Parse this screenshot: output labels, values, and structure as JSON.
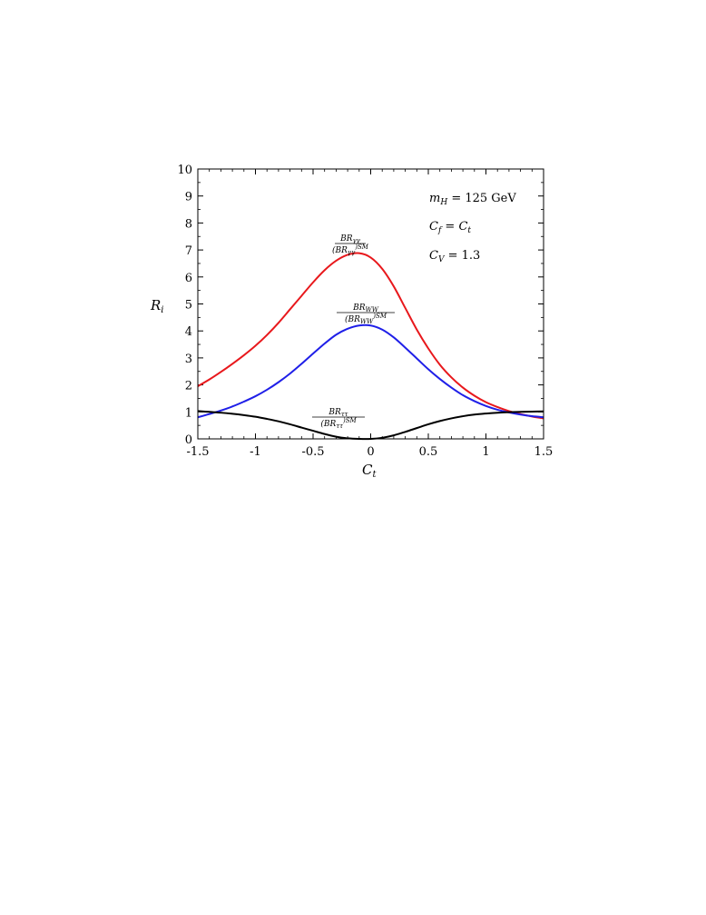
{
  "chart_data": {
    "type": "line",
    "xlabel": "C",
    "xlabel_sub": "t",
    "ylabel": "R",
    "ylabel_sub": "i",
    "xlim": [
      -1.5,
      1.5
    ],
    "ylim": [
      0,
      10
    ],
    "x_ticks": [
      "-1.5",
      "-1",
      "-0.5",
      "0",
      "0.5",
      "1",
      "1.5"
    ],
    "x_tick_values": [
      -1.5,
      -1,
      -0.5,
      0,
      0.5,
      1,
      1.5
    ],
    "y_ticks": [
      "0",
      "1",
      "2",
      "3",
      "4",
      "5",
      "6",
      "7",
      "8",
      "9",
      "10"
    ],
    "y_tick_values": [
      0,
      1,
      2,
      3,
      4,
      5,
      6,
      7,
      8,
      9,
      10
    ],
    "grid": false,
    "annotations": {
      "line1": {
        "var": "m",
        "sub": "H",
        "rest": " = 125 GeV"
      },
      "line2": {
        "var": "C",
        "sub": "f",
        "mid": " = ",
        "var2": "C",
        "sub2": "t"
      },
      "line3": {
        "var": "C",
        "sub": "V",
        "rest": " = 1.3"
      }
    },
    "series": [
      {
        "label_num": "BR",
        "label_num_sub": "γγ",
        "label_den": "(BR",
        "label_den_sub": "γγ",
        "label_den_sup": ")SM",
        "color": "#e8181c",
        "x": [
          -1.5,
          -1.4,
          -1.3,
          -1.2,
          -1.1,
          -1.0,
          -0.9,
          -0.8,
          -0.7,
          -0.6,
          -0.5,
          -0.4,
          -0.3,
          -0.2,
          -0.1,
          0.0,
          0.1,
          0.2,
          0.3,
          0.4,
          0.5,
          0.6,
          0.7,
          0.8,
          0.9,
          1.0,
          1.1,
          1.2,
          1.3,
          1.4,
          1.5
        ],
        "y": [
          1.95,
          2.2,
          2.48,
          2.78,
          3.1,
          3.45,
          3.85,
          4.3,
          4.8,
          5.3,
          5.8,
          6.25,
          6.6,
          6.82,
          6.88,
          6.72,
          6.3,
          5.65,
          4.85,
          4.05,
          3.35,
          2.75,
          2.28,
          1.9,
          1.6,
          1.36,
          1.18,
          1.03,
          0.92,
          0.83,
          0.76
        ]
      },
      {
        "label_num": "BR",
        "label_num_sub": "WW",
        "label_den": "(BR",
        "label_den_sub": "WW",
        "label_den_sup": ")SM",
        "color": "#1f1fe8",
        "x": [
          -1.5,
          -1.4,
          -1.3,
          -1.2,
          -1.1,
          -1.0,
          -0.9,
          -0.8,
          -0.7,
          -0.6,
          -0.5,
          -0.4,
          -0.3,
          -0.2,
          -0.1,
          0.0,
          0.1,
          0.2,
          0.3,
          0.4,
          0.5,
          0.6,
          0.7,
          0.8,
          0.9,
          1.0,
          1.1,
          1.2,
          1.3,
          1.4,
          1.5
        ],
        "y": [
          0.8,
          0.92,
          1.05,
          1.2,
          1.38,
          1.58,
          1.82,
          2.1,
          2.42,
          2.78,
          3.16,
          3.53,
          3.86,
          4.08,
          4.2,
          4.2,
          4.05,
          3.76,
          3.38,
          2.98,
          2.58,
          2.22,
          1.9,
          1.62,
          1.4,
          1.22,
          1.08,
          0.98,
          0.9,
          0.84,
          0.8
        ]
      },
      {
        "label_num": "BR",
        "label_num_sub": "ττ",
        "label_den": "(BR",
        "label_den_sub": "ττ",
        "label_den_sup": ")SM",
        "color": "#000000",
        "x": [
          -1.5,
          -1.4,
          -1.3,
          -1.2,
          -1.1,
          -1.0,
          -0.9,
          -0.8,
          -0.7,
          -0.6,
          -0.5,
          -0.4,
          -0.3,
          -0.2,
          -0.1,
          0.0,
          0.1,
          0.2,
          0.3,
          0.4,
          0.5,
          0.6,
          0.7,
          0.8,
          0.9,
          1.0,
          1.1,
          1.2,
          1.3,
          1.4,
          1.5
        ],
        "y": [
          1.03,
          1.0,
          0.97,
          0.93,
          0.88,
          0.82,
          0.74,
          0.65,
          0.54,
          0.42,
          0.3,
          0.18,
          0.08,
          0.02,
          0.0,
          0.0,
          0.04,
          0.13,
          0.26,
          0.4,
          0.54,
          0.66,
          0.76,
          0.84,
          0.9,
          0.94,
          0.97,
          0.99,
          1.0,
          1.01,
          1.02
        ]
      }
    ]
  }
}
